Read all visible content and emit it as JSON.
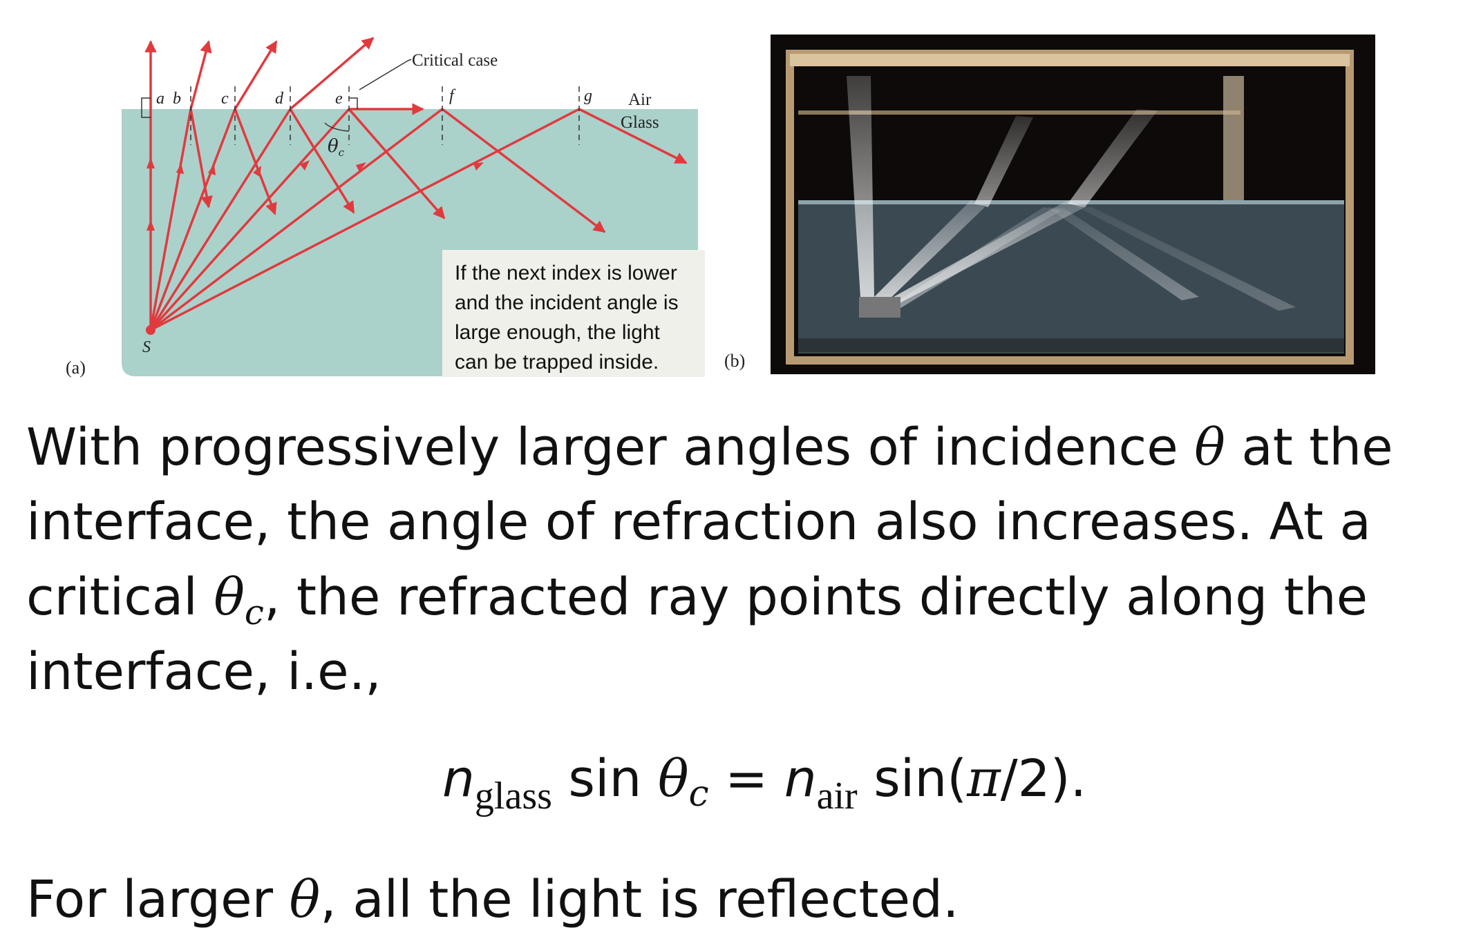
{
  "figure_a": {
    "panel_label": "(a)",
    "critical_label": "Critical case",
    "air_label": "Air",
    "glass_label": "Glass",
    "source_label": "S",
    "angle_label": "θ",
    "angle_sub": "c",
    "ray_labels": [
      "a",
      "b",
      "c",
      "d",
      "e",
      "f",
      "g"
    ],
    "callout_lines": [
      "If the next index is lower",
      "and the incident angle is",
      "large enough, the light",
      "can be trapped inside."
    ],
    "colors": {
      "glass": "#abd1cb",
      "ray": "#e03a3e"
    }
  },
  "figure_b": {
    "panel_label": "(b)"
  },
  "text": {
    "p1_line1_a": "With progressively larger angles of incidence ",
    "theta": "θ",
    "p1_line1_b": " at the",
    "p1_line2": "interface, the angle of refraction also increases. At a",
    "p1_line3_a": "critical ",
    "theta_c_sub": "c",
    "p1_line3_b": ", the refracted ray points directly along the",
    "p1_line4": "interface, i.e.,",
    "eq_n": "n",
    "eq_glass": "glass",
    "eq_sin": " sin ",
    "eq_theta": "θ",
    "eq_c": "c",
    "eq_equals": " = ",
    "eq_air": "air",
    "eq_sin2": " sin(",
    "eq_pi": "π",
    "eq_tail": "/2).",
    "p2_a": "For larger ",
    "p2_b": ", all the light is reflected."
  }
}
